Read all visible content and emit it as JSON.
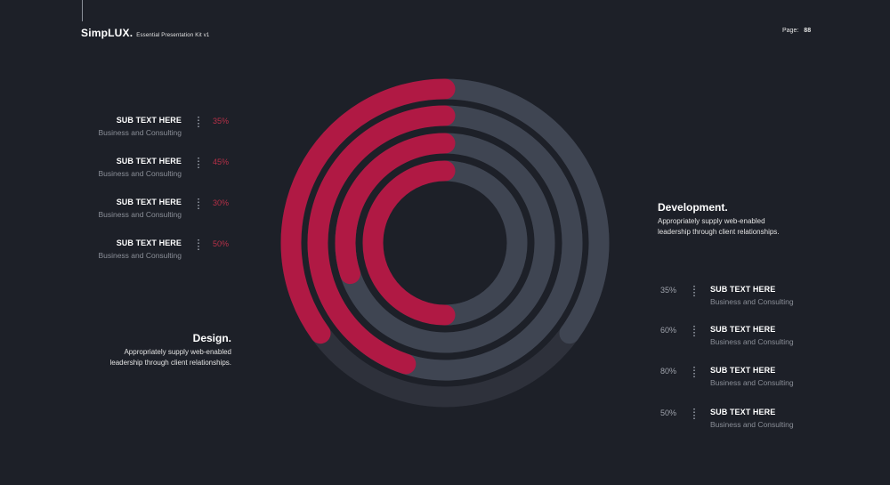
{
  "header": {
    "brand": "SimpLUX.",
    "kit": "Essential Presentation Kit v1",
    "page_label": "Page:",
    "page_number": "88"
  },
  "design": {
    "title": "Design.",
    "desc_line1": "Appropriately supply web-enabled",
    "desc_line2": "leadership through client relationships.",
    "items": [
      {
        "title": "SUB TEXT HERE",
        "subtitle": "Business and Consulting",
        "percent": "35%"
      },
      {
        "title": "SUB TEXT HERE",
        "subtitle": "Business and Consulting",
        "percent": "45%"
      },
      {
        "title": "SUB TEXT HERE",
        "subtitle": "Business and Consulting",
        "percent": "30%"
      },
      {
        "title": "SUB TEXT HERE",
        "subtitle": "Business and Consulting",
        "percent": "50%"
      }
    ]
  },
  "development": {
    "title": "Development.",
    "desc_line1": "Appropriately supply web-enabled",
    "desc_line2": "leadership through client relationships.",
    "items": [
      {
        "title": "SUB TEXT HERE",
        "subtitle": "Business and Consulting",
        "percent": "35%"
      },
      {
        "title": "SUB TEXT HERE",
        "subtitle": "Business and Consulting",
        "percent": "60%"
      },
      {
        "title": "SUB TEXT HERE",
        "subtitle": "Business and Consulting",
        "percent": "80%"
      },
      {
        "title": "SUB TEXT HERE",
        "subtitle": "Business and Consulting",
        "percent": "50%"
      }
    ]
  },
  "chart_data": {
    "type": "radial-bar",
    "series": [
      {
        "name": "Design",
        "values": [
          35,
          45,
          30,
          50
        ],
        "color": "#b01944"
      },
      {
        "name": "Development",
        "values": [
          35,
          60,
          80,
          50
        ],
        "color": "#3f4552"
      }
    ],
    "track_color": "#2e313b",
    "background": "#1d2028"
  }
}
